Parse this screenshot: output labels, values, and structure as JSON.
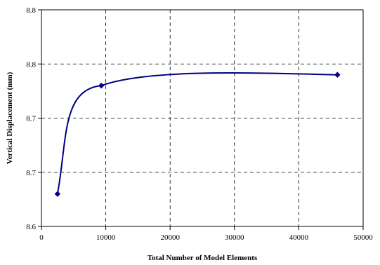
{
  "chart_data": {
    "type": "line",
    "title": "",
    "xlabel": "Total Number of Model Elements",
    "ylabel": "Vertical Displacement (mm)",
    "xlim": [
      0,
      50000
    ],
    "ylim": [
      8.6,
      8.8
    ],
    "x_ticks": [
      0,
      10000,
      20000,
      30000,
      40000,
      50000
    ],
    "x_tick_labels": [
      "0",
      "10000",
      "20000",
      "30000",
      "40000",
      "50000"
    ],
    "y_ticks": [
      8.6,
      8.65,
      8.7,
      8.75,
      8.8
    ],
    "y_tick_labels": [
      "8.6",
      "8.7",
      "8.7",
      "8.8",
      "8.8"
    ],
    "grid": true,
    "grid_style": "dashed",
    "legend": "none",
    "marker": "diamond",
    "smooth": true,
    "series": [
      {
        "color": "#000080",
        "x": [
          2500,
          9300,
          46000
        ],
        "y": [
          8.63,
          8.73,
          8.74
        ]
      }
    ]
  }
}
